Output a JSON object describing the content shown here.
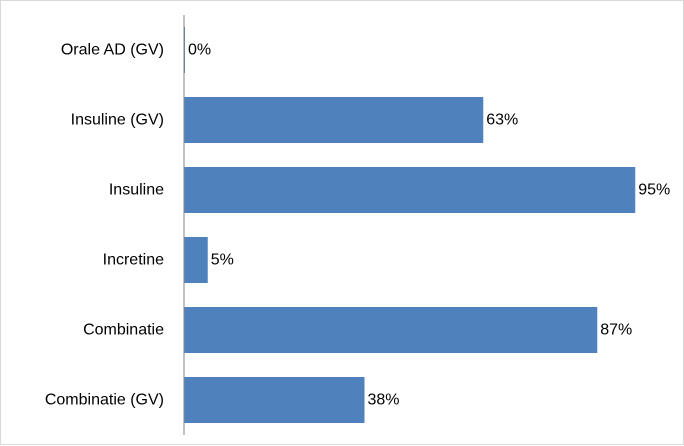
{
  "chart_data": {
    "type": "bar",
    "orientation": "horizontal",
    "categories": [
      "Orale AD (GV)",
      "Insuline (GV)",
      "Insuline",
      "Incretine",
      "Combinatie",
      "Combinatie (GV)"
    ],
    "values": [
      0,
      63,
      95,
      5,
      87,
      38
    ],
    "value_labels": [
      "0%",
      "63%",
      "95%",
      "5%",
      "87%",
      "38%"
    ],
    "unit": "%",
    "title": "",
    "xlabel": "",
    "ylabel": "",
    "xlim": [
      0,
      100
    ],
    "grid": false,
    "legend": "none",
    "bar_color": "#4f81bd",
    "axis_color": "#868686"
  }
}
